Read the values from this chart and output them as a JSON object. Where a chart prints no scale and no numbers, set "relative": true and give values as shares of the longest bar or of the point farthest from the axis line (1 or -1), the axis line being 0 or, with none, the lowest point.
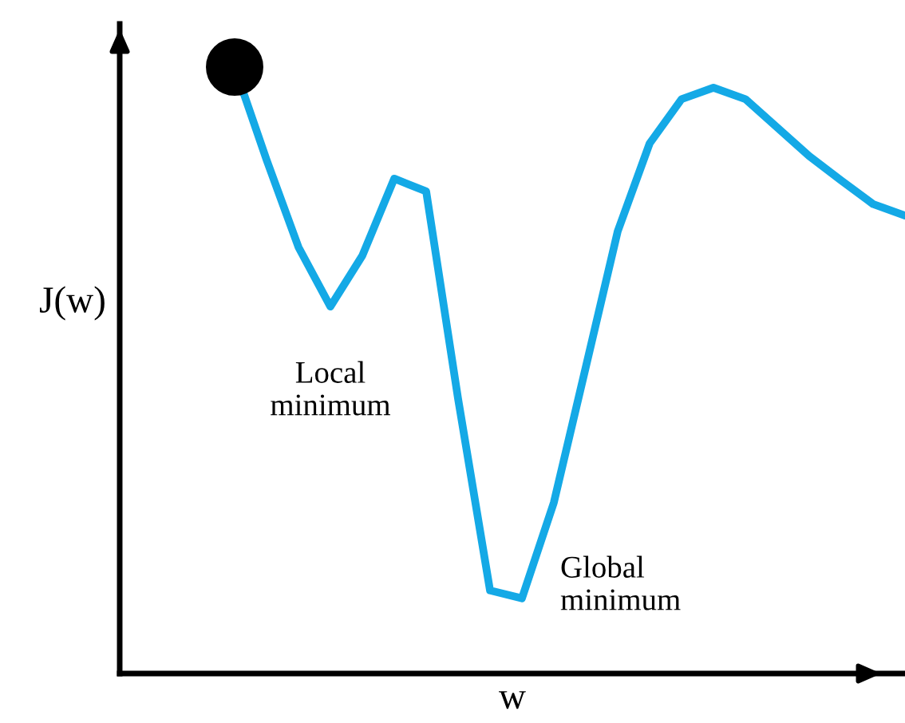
{
  "chart_data": {
    "type": "line",
    "relative": true,
    "xlabel": "w",
    "ylabel": "J(w)",
    "categories": [
      null,
      null,
      null,
      null,
      null,
      null,
      null,
      null,
      null,
      null,
      null,
      null,
      null,
      null,
      null,
      null,
      null,
      null,
      null,
      null,
      null,
      null
    ],
    "series": [
      {
        "color": "#14a9e6",
        "values": [
          1.0,
          0.847,
          0.703,
          0.605,
          0.689,
          0.816,
          0.795,
          0.453,
          0.137,
          0.124,
          0.282,
          0.505,
          0.729,
          0.874,
          0.947,
          0.966,
          0.947,
          0.9,
          0.853,
          0.813,
          0.774,
          0.755
        ]
      }
    ],
    "annotations": [
      "Local\nminimum",
      "Global\nminimum"
    ]
  }
}
